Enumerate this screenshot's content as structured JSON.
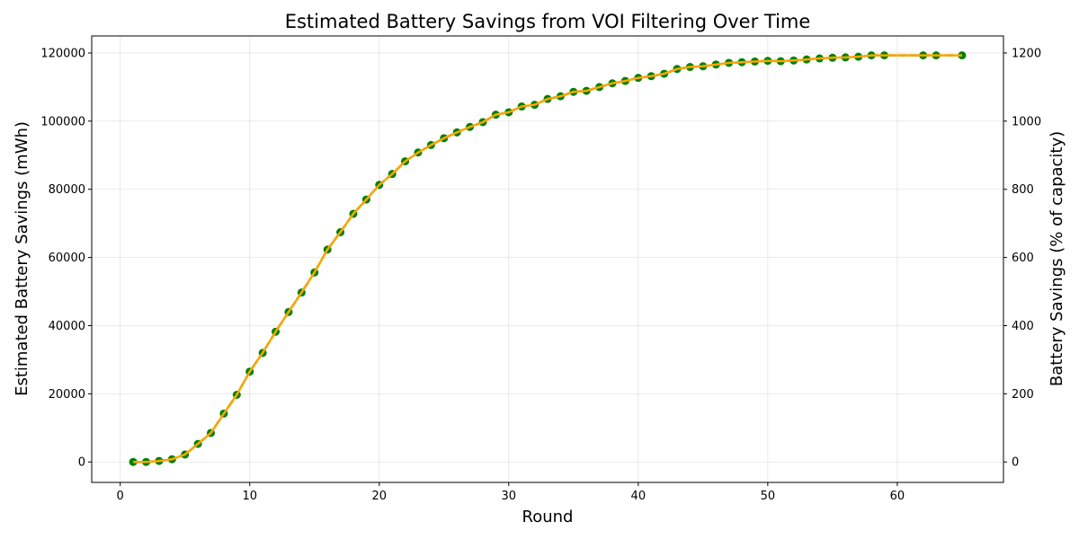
{
  "chart_data": {
    "type": "line",
    "title": "Estimated Battery Savings from VOI Filtering Over Time",
    "xlabel": "Round",
    "ylabel": "Estimated Battery Savings (mWh)",
    "ylabel_right": "Battery Savings (% of capacity)",
    "xlim": [
      -2.2,
      68.2
    ],
    "ylim": [
      -6000,
      125000
    ],
    "ylim_right": [
      -60,
      1250
    ],
    "xticks": [
      0,
      10,
      20,
      30,
      40,
      50,
      60
    ],
    "yticks": [
      0,
      20000,
      40000,
      60000,
      80000,
      100000,
      120000
    ],
    "yticks_right": [
      0,
      200,
      400,
      600,
      800,
      1000,
      1200
    ],
    "grid": true,
    "line_color": "#ffa500",
    "marker_color": "#008000",
    "series": [
      {
        "x": [
          1,
          2,
          3,
          4,
          5,
          6,
          7,
          8,
          9,
          10,
          11,
          12,
          13,
          14,
          15,
          16,
          17,
          18,
          19,
          20,
          21,
          22,
          23,
          24,
          25,
          26,
          27,
          28,
          29,
          30,
          31,
          32,
          33,
          34,
          35,
          36,
          37,
          38,
          39,
          40,
          41,
          42,
          43,
          44,
          45,
          46,
          47,
          48,
          49,
          50,
          51,
          52,
          53,
          54,
          55,
          56,
          57,
          58,
          59,
          62,
          63,
          65
        ],
        "y": [
          0,
          0,
          300,
          800,
          2200,
          5300,
          8500,
          14200,
          19700,
          26500,
          32000,
          38200,
          44000,
          49700,
          55600,
          62300,
          67400,
          72800,
          77000,
          81300,
          84500,
          88200,
          90800,
          93000,
          95000,
          96700,
          98300,
          99700,
          101900,
          102600,
          104300,
          104800,
          106500,
          107300,
          108600,
          108900,
          110000,
          111100,
          111800,
          112700,
          113200,
          113900,
          115300,
          115900,
          116100,
          116600,
          117100,
          117300,
          117500,
          117700,
          117600,
          117800,
          118100,
          118400,
          118600,
          118700,
          118900,
          119300,
          119300,
          119300,
          119300,
          119300
        ]
      }
    ]
  }
}
